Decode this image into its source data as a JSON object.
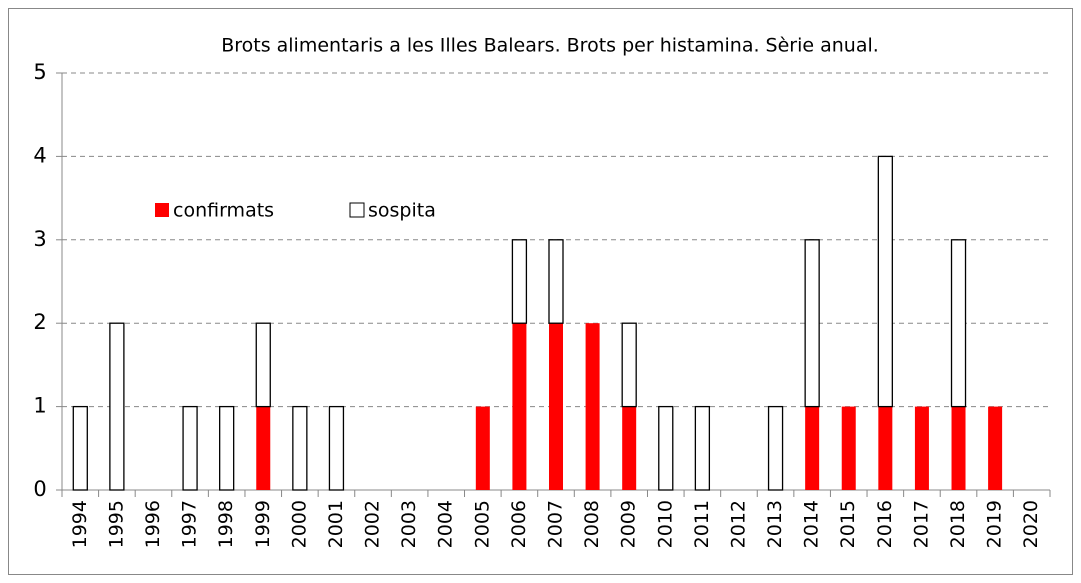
{
  "chart_data": {
    "type": "stacked_bar",
    "title": "Brots alimentaris a les Illes Balears. Brots per histamina. Sèrie anual.",
    "categories": [
      "1994",
      "1995",
      "1996",
      "1997",
      "1998",
      "1999",
      "2000",
      "2001",
      "2002",
      "2003",
      "2004",
      "2005",
      "2006",
      "2007",
      "2008",
      "2009",
      "2010",
      "2011",
      "2012",
      "2013",
      "2014",
      "2015",
      "2016",
      "2017",
      "2018",
      "2019",
      "2020"
    ],
    "series": [
      {
        "name": "confirmats",
        "color": "#ff0000",
        "values": [
          0,
          0,
          0,
          0,
          0,
          1,
          0,
          0,
          0,
          0,
          0,
          1,
          2,
          2,
          2,
          1,
          0,
          0,
          0,
          0,
          1,
          1,
          1,
          1,
          1,
          1,
          0
        ]
      },
      {
        "name": "sospita",
        "color": "#ffffff",
        "values": [
          1,
          2,
          0,
          1,
          1,
          1,
          1,
          1,
          0,
          0,
          0,
          0,
          1,
          1,
          0,
          1,
          1,
          1,
          0,
          1,
          2,
          0,
          3,
          0,
          2,
          0,
          0
        ]
      }
    ],
    "ylim": [
      0,
      5
    ],
    "yticks": [
      0,
      1,
      2,
      3,
      4,
      5
    ],
    "grid": true
  }
}
